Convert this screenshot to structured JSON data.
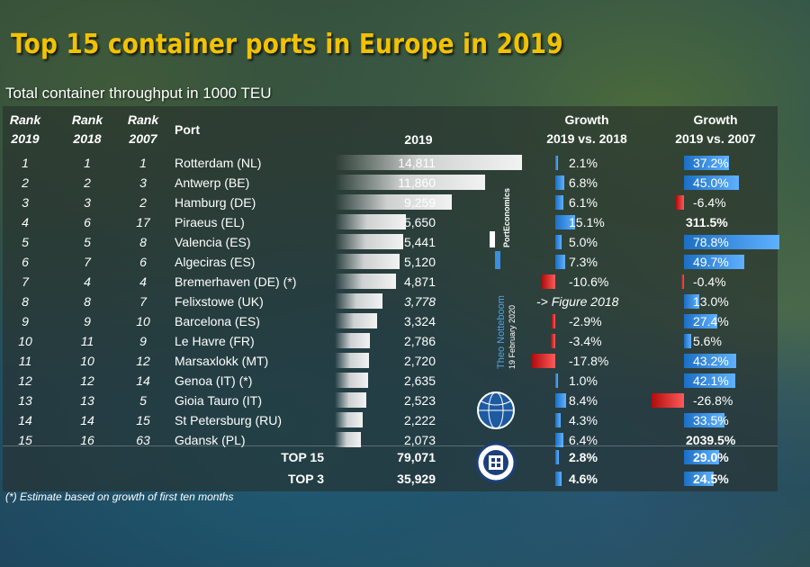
{
  "header": {
    "title": "Top 15 container ports in Europe in 2019",
    "subtitle": "Total container throughput in 1000 TEU"
  },
  "columns": {
    "rank2019": [
      "Rank",
      "2019"
    ],
    "rank2018": [
      "Rank",
      "2018"
    ],
    "rank2007": [
      "Rank",
      "2007"
    ],
    "port": "Port",
    "value": "2019",
    "growth1": [
      "Growth",
      "2019 vs. 2018"
    ],
    "growth2": [
      "Growth",
      "2019 vs. 2007"
    ]
  },
  "colors": {
    "title": "#f2c200",
    "positive_bar": "#3a8fe0",
    "negative_bar": "#e02020",
    "value_bar": "#f2f2f2"
  },
  "chart_data": {
    "type": "table",
    "title": "Top 15 container ports in Europe in 2019",
    "subtitle": "Total container throughput in 1000 TEU",
    "rows": [
      {
        "rank2019": "1",
        "rank2018": "1",
        "rank2007": "1",
        "port": "Rotterdam (NL)",
        "value": 14811,
        "value_label": "14,811",
        "g1": 2.1,
        "g1_label": "2.1%",
        "g2": 37.2,
        "g2_label": "37.2%"
      },
      {
        "rank2019": "2",
        "rank2018": "2",
        "rank2007": "3",
        "port": "Antwerp (BE)",
        "value": 11860,
        "value_label": "11,860",
        "g1": 6.8,
        "g1_label": "6.8%",
        "g2": 45.0,
        "g2_label": "45.0%"
      },
      {
        "rank2019": "3",
        "rank2018": "3",
        "rank2007": "2",
        "port": "Hamburg (DE)",
        "value": 9259,
        "value_label": "9,259",
        "g1": 6.1,
        "g1_label": "6.1%",
        "g2": -6.4,
        "g2_label": "-6.4%"
      },
      {
        "rank2019": "4",
        "rank2018": "6",
        "rank2007": "17",
        "port": "Piraeus (EL)",
        "value": 5650,
        "value_label": "5,650",
        "g1": 15.1,
        "g1_label": "15.1%",
        "g2": 311.5,
        "g2_label": "311.5%",
        "g2_nobar": true
      },
      {
        "rank2019": "5",
        "rank2018": "5",
        "rank2007": "8",
        "port": "Valencia (ES)",
        "value": 5441,
        "value_label": "5,441",
        "g1": 5.0,
        "g1_label": "5.0%",
        "g2": 78.8,
        "g2_label": "78.8%"
      },
      {
        "rank2019": "6",
        "rank2018": "7",
        "rank2007": "6",
        "port": "Algeciras (ES)",
        "value": 5120,
        "value_label": "5,120",
        "g1": 7.3,
        "g1_label": "7.3%",
        "g2": 49.7,
        "g2_label": "49.7%"
      },
      {
        "rank2019": "7",
        "rank2018": "4",
        "rank2007": "4",
        "port": "Bremerhaven (DE) (*)",
        "value": 4871,
        "value_label": "4,871",
        "g1": -10.6,
        "g1_label": "-10.6%",
        "g2": -0.4,
        "g2_label": "-0.4%"
      },
      {
        "rank2019": "8",
        "rank2018": "8",
        "rank2007": "7",
        "port": "Felixstowe (UK)",
        "value": 3778,
        "value_label": "3,778",
        "value_italic": true,
        "g1": null,
        "g1_label": "-> Figure 2018",
        "g2": 13.0,
        "g2_label": "13.0%"
      },
      {
        "rank2019": "9",
        "rank2018": "9",
        "rank2007": "10",
        "port": "Barcelona (ES)",
        "value": 3324,
        "value_label": "3,324",
        "g1": -2.9,
        "g1_label": "-2.9%",
        "g2": 27.4,
        "g2_label": "27.4%"
      },
      {
        "rank2019": "10",
        "rank2018": "11",
        "rank2007": "9",
        "port": "Le Havre (FR)",
        "value": 2786,
        "value_label": "2,786",
        "g1": -3.4,
        "g1_label": "-3.4%",
        "g2": 5.6,
        "g2_label": "5.6%"
      },
      {
        "rank2019": "11",
        "rank2018": "10",
        "rank2007": "12",
        "port": "Marsaxlokk (MT)",
        "value": 2720,
        "value_label": "2,720",
        "g1": -17.8,
        "g1_label": "-17.8%",
        "g2": 43.2,
        "g2_label": "43.2%"
      },
      {
        "rank2019": "12",
        "rank2018": "12",
        "rank2007": "14",
        "port": "Genoa (IT) (*)",
        "value": 2635,
        "value_label": "2,635",
        "g1": 1.0,
        "g1_label": "1.0%",
        "g2": 42.1,
        "g2_label": "42.1%"
      },
      {
        "rank2019": "13",
        "rank2018": "13",
        "rank2007": "5",
        "port": "Gioia Tauro (IT)",
        "value": 2523,
        "value_label": "2,523",
        "g1": 8.4,
        "g1_label": "8.4%",
        "g2": -26.8,
        "g2_label": "-26.8%"
      },
      {
        "rank2019": "14",
        "rank2018": "14",
        "rank2007": "15",
        "port": "St Petersburg (RU)",
        "value": 2222,
        "value_label": "2,222",
        "g1": 4.3,
        "g1_label": "4.3%",
        "g2": 33.5,
        "g2_label": "33.5%"
      },
      {
        "rank2019": "15",
        "rank2018": "16",
        "rank2007": "63",
        "port": "Gdansk (PL)",
        "value": 2073,
        "value_label": "2,073",
        "g1": 6.4,
        "g1_label": "6.4%",
        "g2": 2039.5,
        "g2_label": "2039.5%",
        "g2_nobar": true
      }
    ],
    "totals": [
      {
        "label": "TOP 15",
        "value": 79071,
        "value_label": "79,071",
        "g1": 2.8,
        "g1_label": "2.8%",
        "g2": 29.0,
        "g2_label": "29.0%"
      },
      {
        "label": "TOP 3",
        "value": 35929,
        "value_label": "35,929",
        "g1": 4.6,
        "g1_label": "4.6%",
        "g2": 24.5,
        "g2_label": "24.5%"
      }
    ],
    "value_max": 14811,
    "g1_scale_max": 17.8,
    "g2_scale_max": 78.8
  },
  "footnote": "(*) Estimate based on growth of first ten months",
  "author": {
    "name": "Theo Notteboom",
    "date": "19 February 2020",
    "brand": "PortEconomics"
  }
}
